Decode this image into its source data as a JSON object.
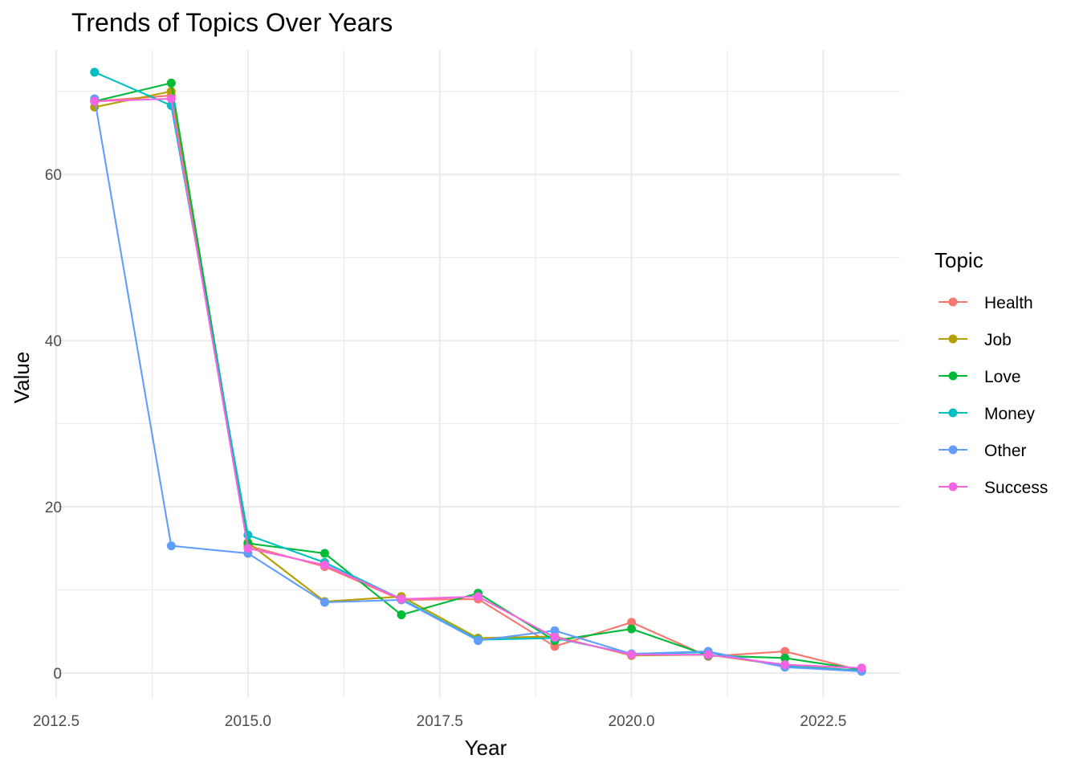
{
  "chart_data": {
    "type": "line",
    "title": "Trends of Topics Over Years",
    "xlabel": "Year",
    "ylabel": "Value",
    "xlim": [
      2012.5,
      2023.5
    ],
    "ylim": [
      -3,
      75
    ],
    "x_ticks": [
      2012.5,
      2015.0,
      2017.5,
      2020.0,
      2022.5
    ],
    "x_tick_labels": [
      "2012.5",
      "2015.0",
      "2017.5",
      "2020.0",
      "2022.5"
    ],
    "y_ticks": [
      0,
      20,
      40,
      60
    ],
    "y_tick_labels": [
      "0",
      "20",
      "40",
      "60"
    ],
    "grid": true,
    "legend": {
      "title": "Topic",
      "position": "right"
    },
    "x": [
      2013,
      2014,
      2015,
      2016,
      2017,
      2018,
      2019,
      2020,
      2021,
      2022,
      2023
    ],
    "series": [
      {
        "name": "Health",
        "color": "#F8766D",
        "values": [
          68.8,
          69.5,
          15.3,
          12.8,
          8.8,
          8.9,
          3.2,
          6.1,
          2.0,
          2.6,
          0.3
        ]
      },
      {
        "name": "Job",
        "color": "#B79F00",
        "values": [
          68.1,
          70.0,
          15.7,
          8.6,
          9.2,
          4.2,
          4.4,
          2.1,
          2.2,
          0.9,
          0.3
        ]
      },
      {
        "name": "Love",
        "color": "#00BA38",
        "values": [
          68.8,
          71.0,
          15.6,
          14.4,
          7.0,
          9.6,
          3.9,
          5.3,
          2.1,
          1.8,
          0.4
        ]
      },
      {
        "name": "Money",
        "color": "#00BFC4",
        "values": [
          72.3,
          68.3,
          16.6,
          13.3,
          8.9,
          4.0,
          4.2,
          2.3,
          2.5,
          0.8,
          0.3
        ]
      },
      {
        "name": "Other",
        "color": "#619CFF",
        "values": [
          69.1,
          15.3,
          14.4,
          8.5,
          8.8,
          3.9,
          5.1,
          2.3,
          2.6,
          0.7,
          0.2
        ]
      },
      {
        "name": "Success",
        "color": "#F564E3",
        "values": [
          68.8,
          69.1,
          15.0,
          13.0,
          8.9,
          9.2,
          4.3,
          2.2,
          2.2,
          1.0,
          0.6
        ]
      }
    ]
  }
}
